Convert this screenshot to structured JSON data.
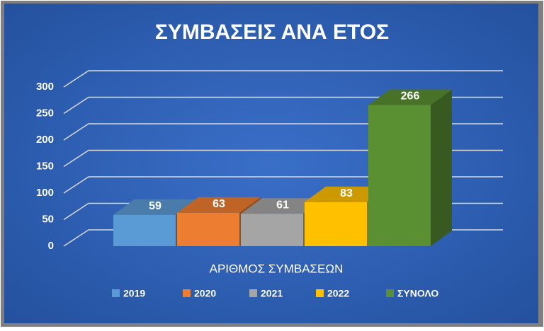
{
  "chart_data": {
    "type": "bar3d",
    "title": "ΣΥΜΒΑΣΕΙΣ ΑΝΑ ΕΤΟΣ",
    "categories": [
      "ΑΡΙΘΜΟΣ ΣΥΜΒΑΣΕΩΝ"
    ],
    "series": [
      {
        "name": "2019",
        "color": "#5b9bd5",
        "values": [
          59
        ]
      },
      {
        "name": "2020",
        "color": "#ed7d31",
        "values": [
          63
        ]
      },
      {
        "name": "2021",
        "color": "#a5a5a5",
        "values": [
          61
        ]
      },
      {
        "name": "2022",
        "color": "#ffc000",
        "values": [
          83
        ]
      },
      {
        "name": "ΣΥΝΟΛΟ",
        "color": "#5a8f32",
        "values": [
          266
        ]
      }
    ],
    "ylim": [
      0,
      300
    ],
    "yticks": [
      0,
      50,
      100,
      150,
      200,
      250,
      300
    ],
    "grid": true,
    "legend": "bottom"
  }
}
